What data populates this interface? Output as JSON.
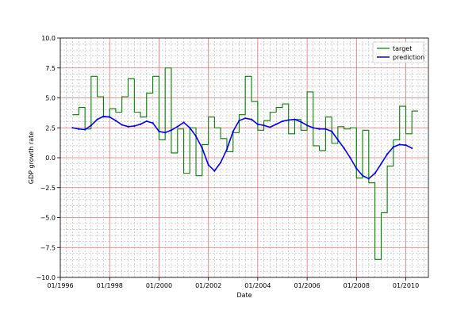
{
  "chart_data": {
    "type": "line",
    "xlabel": "Date",
    "ylabel": "GDP growth rate",
    "xlim": [
      "1996-01-01",
      "2010-12-01"
    ],
    "ylim": [
      -10.0,
      10.0
    ],
    "x_ticks": [
      {
        "date": "1996-01-01",
        "label": "01/1996"
      },
      {
        "date": "1998-01-01",
        "label": "01/1998"
      },
      {
        "date": "2000-01-01",
        "label": "01/2000"
      },
      {
        "date": "2002-01-01",
        "label": "01/2002"
      },
      {
        "date": "2004-01-01",
        "label": "01/2004"
      },
      {
        "date": "2006-01-01",
        "label": "01/2006"
      },
      {
        "date": "2008-01-01",
        "label": "01/2008"
      },
      {
        "date": "2010-01-01",
        "label": "01/2010"
      }
    ],
    "y_ticks": [
      {
        "value": 10.0,
        "label": "10.0"
      },
      {
        "value": 7.5,
        "label": "7.5"
      },
      {
        "value": 5.0,
        "label": "5.0"
      },
      {
        "value": 2.5,
        "label": "2.5"
      },
      {
        "value": 0.0,
        "label": "0.0"
      },
      {
        "value": -2.5,
        "label": "−2.5"
      },
      {
        "value": -5.0,
        "label": "−5.0"
      },
      {
        "value": -7.5,
        "label": "−7.5"
      },
      {
        "value": -10.0,
        "label": "−10.0"
      }
    ],
    "grid": {
      "major": true,
      "minor": true,
      "major_color": "#e87070",
      "minor_color": "#aaaaaa"
    },
    "legend_position": "top-right",
    "series": [
      {
        "name": "target",
        "color": "#008000",
        "style": "step",
        "points": [
          {
            "x": "1996-07-01",
            "y": 3.6
          },
          {
            "x": "1996-10-01",
            "y": 4.2
          },
          {
            "x": "1997-01-01",
            "y": 2.4
          },
          {
            "x": "1997-04-01",
            "y": 6.8
          },
          {
            "x": "1997-07-01",
            "y": 5.1
          },
          {
            "x": "1997-10-01",
            "y": 3.4
          },
          {
            "x": "1998-01-01",
            "y": 4.1
          },
          {
            "x": "1998-04-01",
            "y": 3.8
          },
          {
            "x": "1998-07-01",
            "y": 5.1
          },
          {
            "x": "1998-10-01",
            "y": 6.6
          },
          {
            "x": "1999-01-01",
            "y": 3.8
          },
          {
            "x": "1999-04-01",
            "y": 3.4
          },
          {
            "x": "1999-07-01",
            "y": 5.4
          },
          {
            "x": "1999-10-01",
            "y": 6.8
          },
          {
            "x": "2000-01-01",
            "y": 1.5
          },
          {
            "x": "2000-04-01",
            "y": 7.5
          },
          {
            "x": "2000-07-01",
            "y": 0.4
          },
          {
            "x": "2000-10-01",
            "y": 2.4
          },
          {
            "x": "2001-01-01",
            "y": -1.3
          },
          {
            "x": "2001-04-01",
            "y": 2.5
          },
          {
            "x": "2001-07-01",
            "y": -1.5
          },
          {
            "x": "2001-10-01",
            "y": 1.1
          },
          {
            "x": "2002-01-01",
            "y": 3.4
          },
          {
            "x": "2002-04-01",
            "y": 2.5
          },
          {
            "x": "2002-07-01",
            "y": 1.6
          },
          {
            "x": "2002-10-01",
            "y": 0.5
          },
          {
            "x": "2003-01-01",
            "y": 2.1
          },
          {
            "x": "2003-04-01",
            "y": 3.6
          },
          {
            "x": "2003-07-01",
            "y": 6.8
          },
          {
            "x": "2003-10-01",
            "y": 4.7
          },
          {
            "x": "2004-01-01",
            "y": 2.3
          },
          {
            "x": "2004-04-01",
            "y": 3.1
          },
          {
            "x": "2004-07-01",
            "y": 3.8
          },
          {
            "x": "2004-10-01",
            "y": 4.2
          },
          {
            "x": "2005-01-01",
            "y": 4.5
          },
          {
            "x": "2005-04-01",
            "y": 2.0
          },
          {
            "x": "2005-07-01",
            "y": 3.2
          },
          {
            "x": "2005-10-01",
            "y": 2.3
          },
          {
            "x": "2006-01-01",
            "y": 5.5
          },
          {
            "x": "2006-04-01",
            "y": 1.0
          },
          {
            "x": "2006-07-01",
            "y": 0.6
          },
          {
            "x": "2006-10-01",
            "y": 3.4
          },
          {
            "x": "2007-01-01",
            "y": 1.2
          },
          {
            "x": "2007-04-01",
            "y": 2.6
          },
          {
            "x": "2007-07-01",
            "y": 2.4
          },
          {
            "x": "2007-10-01",
            "y": 2.5
          },
          {
            "x": "2008-01-01",
            "y": -1.7
          },
          {
            "x": "2008-04-01",
            "y": 2.3
          },
          {
            "x": "2008-07-01",
            "y": -2.1
          },
          {
            "x": "2008-10-01",
            "y": -8.5
          },
          {
            "x": "2009-01-01",
            "y": -4.6
          },
          {
            "x": "2009-04-01",
            "y": -0.7
          },
          {
            "x": "2009-07-01",
            "y": 1.5
          },
          {
            "x": "2009-10-01",
            "y": 4.3
          },
          {
            "x": "2010-01-01",
            "y": 2.0
          },
          {
            "x": "2010-04-01",
            "y": 3.9
          }
        ]
      },
      {
        "name": "prediction",
        "color": "#0000ff",
        "style": "line",
        "points": [
          {
            "x": "1996-07-01",
            "y": 2.5
          },
          {
            "x": "1996-10-01",
            "y": 2.4
          },
          {
            "x": "1997-01-01",
            "y": 2.35
          },
          {
            "x": "1997-04-01",
            "y": 2.7
          },
          {
            "x": "1997-07-01",
            "y": 3.2
          },
          {
            "x": "1997-10-01",
            "y": 3.45
          },
          {
            "x": "1998-01-01",
            "y": 3.4
          },
          {
            "x": "1998-04-01",
            "y": 3.1
          },
          {
            "x": "1998-07-01",
            "y": 2.75
          },
          {
            "x": "1998-10-01",
            "y": 2.6
          },
          {
            "x": "1999-01-01",
            "y": 2.65
          },
          {
            "x": "1999-04-01",
            "y": 2.8
          },
          {
            "x": "1999-07-01",
            "y": 3.05
          },
          {
            "x": "1999-10-01",
            "y": 2.9
          },
          {
            "x": "2000-01-01",
            "y": 2.2
          },
          {
            "x": "2000-04-01",
            "y": 2.1
          },
          {
            "x": "2000-07-01",
            "y": 2.3
          },
          {
            "x": "2000-10-01",
            "y": 2.6
          },
          {
            "x": "2001-01-01",
            "y": 2.95
          },
          {
            "x": "2001-04-01",
            "y": 2.5
          },
          {
            "x": "2001-07-01",
            "y": 1.8
          },
          {
            "x": "2001-10-01",
            "y": 0.8
          },
          {
            "x": "2002-01-01",
            "y": -0.6
          },
          {
            "x": "2002-04-01",
            "y": -1.1
          },
          {
            "x": "2002-07-01",
            "y": -0.4
          },
          {
            "x": "2002-10-01",
            "y": 0.7
          },
          {
            "x": "2003-01-01",
            "y": 2.2
          },
          {
            "x": "2003-04-01",
            "y": 3.1
          },
          {
            "x": "2003-07-01",
            "y": 3.3
          },
          {
            "x": "2003-10-01",
            "y": 3.2
          },
          {
            "x": "2004-01-01",
            "y": 2.8
          },
          {
            "x": "2004-04-01",
            "y": 2.7
          },
          {
            "x": "2004-07-01",
            "y": 2.55
          },
          {
            "x": "2004-10-01",
            "y": 2.8
          },
          {
            "x": "2005-01-01",
            "y": 3.05
          },
          {
            "x": "2005-04-01",
            "y": 3.15
          },
          {
            "x": "2005-07-01",
            "y": 3.2
          },
          {
            "x": "2005-10-01",
            "y": 3.0
          },
          {
            "x": "2006-01-01",
            "y": 2.7
          },
          {
            "x": "2006-04-01",
            "y": 2.5
          },
          {
            "x": "2006-07-01",
            "y": 2.4
          },
          {
            "x": "2006-10-01",
            "y": 2.4
          },
          {
            "x": "2007-01-01",
            "y": 2.2
          },
          {
            "x": "2007-04-01",
            "y": 1.5
          },
          {
            "x": "2007-07-01",
            "y": 0.8
          },
          {
            "x": "2007-10-01",
            "y": 0.0
          },
          {
            "x": "2008-01-01",
            "y": -0.9
          },
          {
            "x": "2008-04-01",
            "y": -1.5
          },
          {
            "x": "2008-07-01",
            "y": -1.75
          },
          {
            "x": "2008-10-01",
            "y": -1.3
          },
          {
            "x": "2009-01-01",
            "y": -0.5
          },
          {
            "x": "2009-04-01",
            "y": 0.3
          },
          {
            "x": "2009-07-01",
            "y": 0.9
          },
          {
            "x": "2009-10-01",
            "y": 1.1
          },
          {
            "x": "2010-01-01",
            "y": 1.05
          },
          {
            "x": "2010-04-01",
            "y": 0.8
          }
        ]
      }
    ]
  }
}
